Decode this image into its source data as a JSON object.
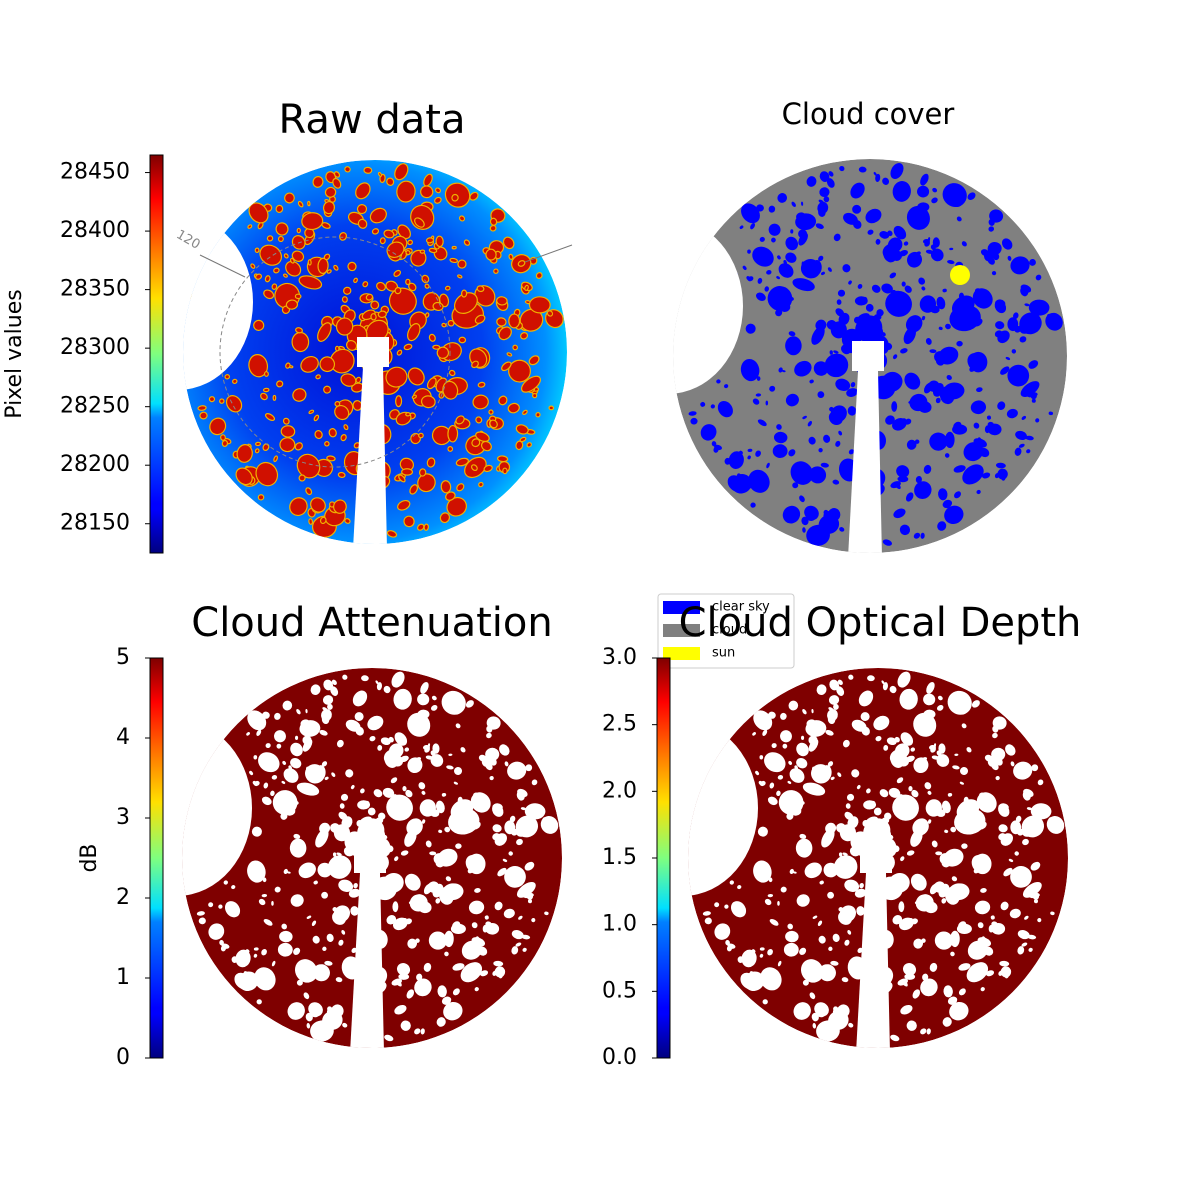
{
  "chart_data": [
    {
      "type": "image",
      "title": "Raw data",
      "colormap": "jet",
      "colorbar": {
        "label": "Pixel values",
        "lim": [
          28125,
          28465
        ],
        "ticks": [
          28150,
          28200,
          28250,
          28300,
          28350,
          28400,
          28450
        ]
      },
      "annotations": [
        "120"
      ]
    },
    {
      "type": "category-image",
      "title": "Cloud cover",
      "legend": [
        {
          "name": "clear sky",
          "color": "#0000ff"
        },
        {
          "name": "cloud",
          "color": "#808080"
        },
        {
          "name": "sun",
          "color": "#ffff00"
        }
      ]
    },
    {
      "type": "image",
      "title": "Cloud Attenuation",
      "colormap": "jet",
      "colorbar": {
        "label": "dB",
        "lim": [
          0,
          5
        ],
        "ticks": [
          0,
          1,
          2,
          3,
          4,
          5
        ]
      }
    },
    {
      "type": "image",
      "title": "Cloud Optical Depth",
      "colormap": "jet",
      "colorbar": {
        "lim": [
          0,
          3
        ],
        "ticks": [
          {
            "value": 0,
            "label": "0.0"
          },
          {
            "value": 0.5,
            "label": "0.5"
          },
          {
            "value": 1,
            "label": "1.0"
          },
          {
            "value": 1.5,
            "label": "1.5"
          },
          {
            "value": 2,
            "label": "2.0"
          },
          {
            "value": 2.5,
            "label": "2.5"
          },
          {
            "value": 3,
            "label": "3.0"
          }
        ]
      }
    }
  ]
}
